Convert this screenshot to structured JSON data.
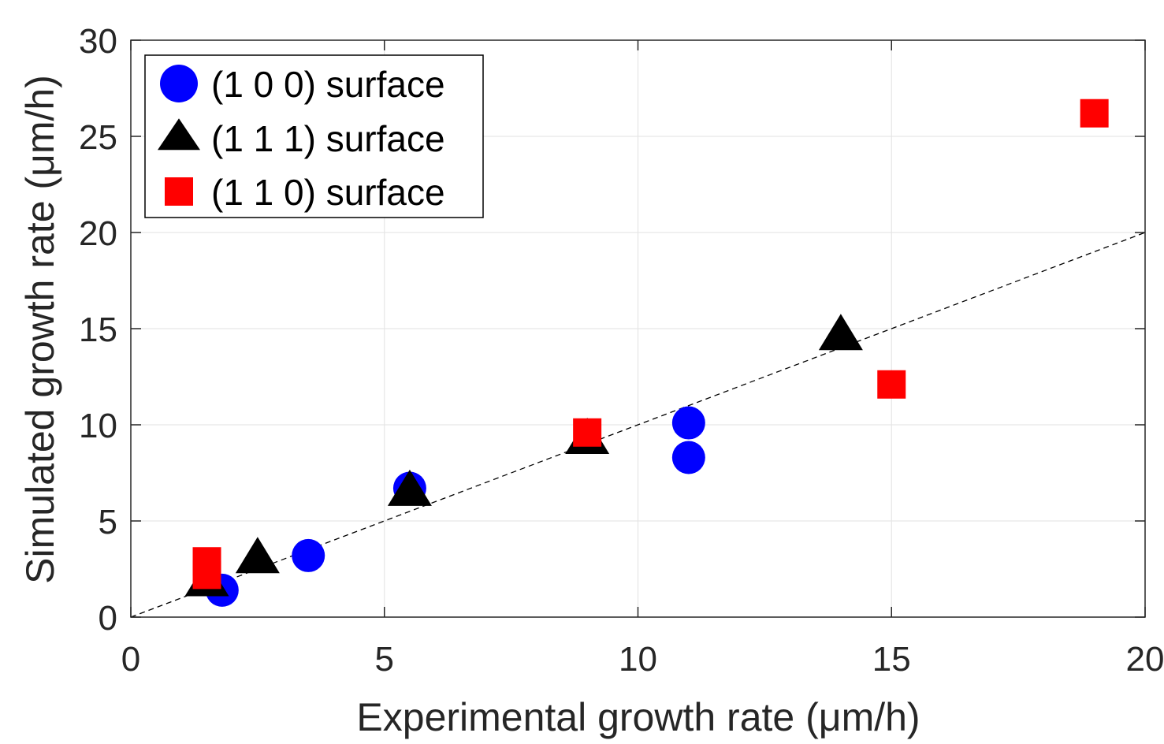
{
  "chart_data": {
    "type": "scatter",
    "xlabel": "Experimental growth rate (μm/h)",
    "ylabel": "Simulated growth rate (μm/h)",
    "xlim": [
      0,
      20
    ],
    "ylim": [
      0,
      30
    ],
    "xticks": [
      0,
      5,
      10,
      15,
      20
    ],
    "yticks": [
      0,
      5,
      10,
      15,
      20,
      25,
      30
    ],
    "xtick_labels": [
      "0",
      "5",
      "10",
      "15",
      "20"
    ],
    "ytick_labels": [
      "0",
      "5",
      "10",
      "15",
      "20",
      "25",
      "30"
    ],
    "grid": true,
    "legend_position": "top-left",
    "reference_line": {
      "style": "dashed",
      "color": "#000000",
      "x": [
        0,
        20
      ],
      "y": [
        0,
        20
      ]
    },
    "series": [
      {
        "name": "(1 0 0) surface",
        "marker": "circle",
        "color": "#0000ff",
        "x": [
          1.8,
          3.5,
          5.5,
          11.0,
          11.0
        ],
        "y": [
          1.4,
          3.2,
          6.7,
          10.1,
          8.3
        ]
      },
      {
        "name": "(1 1 1) surface",
        "marker": "triangle",
        "color": "#000000",
        "x": [
          1.5,
          2.5,
          5.5,
          9.0,
          14.0
        ],
        "y": [
          1.8,
          3.0,
          6.5,
          9.2,
          14.6
        ]
      },
      {
        "name": "(1 1 0) surface",
        "marker": "square",
        "color": "#ff0000",
        "x": [
          1.5,
          1.5,
          9.0,
          15.0,
          19.0
        ],
        "y": [
          2.2,
          2.9,
          9.6,
          12.1,
          26.2
        ]
      }
    ]
  }
}
